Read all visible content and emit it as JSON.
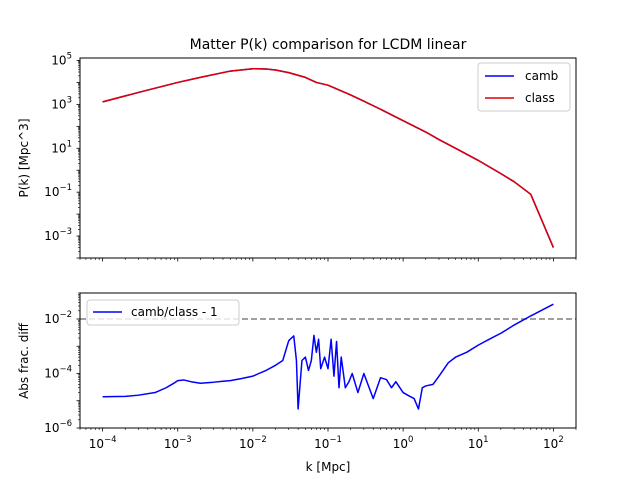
{
  "chart_data": [
    {
      "type": "line",
      "title": "Matter P(k) comparison for LCDM linear",
      "xlabel": "",
      "ylabel": "P(k) [Mpc^3]",
      "xscale": "log",
      "yscale": "log",
      "xlim": [
        5e-05,
        200
      ],
      "ylim": [
        0.0001,
        130000.0
      ],
      "yticks": [
        {
          "base": "10",
          "exp": "5",
          "value": 100000
        },
        {
          "base": "10",
          "exp": "3",
          "value": 1000
        },
        {
          "base": "10",
          "exp": "1",
          "value": 10
        },
        {
          "base": "10",
          "exp": "−1",
          "value": 0.1
        },
        {
          "base": "10",
          "exp": "−3",
          "value": 0.001
        }
      ],
      "legend": {
        "position": "top-right"
      },
      "series": [
        {
          "name": "camb",
          "color": "#0000ff",
          "x": [
            0.0001,
            0.0003,
            0.001,
            0.002,
            0.005,
            0.01,
            0.015,
            0.02,
            0.03,
            0.05,
            0.07,
            0.1,
            0.2,
            0.3,
            0.5,
            1,
            2,
            3,
            5,
            10,
            20,
            30,
            50,
            100
          ],
          "y": [
            1300,
            3500,
            10000,
            17000,
            33000,
            42000,
            41000,
            37000,
            28000,
            17000,
            10000,
            7500,
            2700,
            1400,
            600,
            180,
            55,
            25,
            10,
            2.8,
            0.7,
            0.3,
            0.08,
            0.0003
          ]
        },
        {
          "name": "class",
          "color": "#e00000",
          "x": [
            0.0001,
            0.0003,
            0.001,
            0.002,
            0.005,
            0.01,
            0.015,
            0.02,
            0.03,
            0.05,
            0.07,
            0.1,
            0.2,
            0.3,
            0.5,
            1,
            2,
            3,
            5,
            10,
            20,
            30,
            50,
            100
          ],
          "y": [
            1300,
            3500,
            10000,
            17000,
            33000,
            42000,
            41000,
            37000,
            28000,
            17000,
            10000,
            7500,
            2700,
            1400,
            600,
            180,
            55,
            25,
            10,
            2.8,
            0.7,
            0.3,
            0.08,
            0.0003
          ]
        }
      ]
    },
    {
      "type": "line",
      "title": "",
      "xlabel": "k [Mpc]",
      "ylabel": "Abs frac. diff",
      "xscale": "log",
      "yscale": "log",
      "xlim": [
        5e-05,
        200
      ],
      "ylim": [
        1e-06,
        0.09
      ],
      "xticks": [
        {
          "base": "10",
          "exp": "−4",
          "value": 0.0001
        },
        {
          "base": "10",
          "exp": "−3",
          "value": 0.001
        },
        {
          "base": "10",
          "exp": "−2",
          "value": 0.01
        },
        {
          "base": "10",
          "exp": "−1",
          "value": 0.1
        },
        {
          "base": "10",
          "exp": "0",
          "value": 1
        },
        {
          "base": "10",
          "exp": "1",
          "value": 10
        },
        {
          "base": "10",
          "exp": "2",
          "value": 100
        }
      ],
      "yticks": [
        {
          "base": "10",
          "exp": "−2",
          "value": 0.01
        },
        {
          "base": "10",
          "exp": "−4",
          "value": 0.0001
        },
        {
          "base": "10",
          "exp": "−6",
          "value": 1e-06
        }
      ],
      "reference_line": {
        "y": 0.01,
        "style": "dashed",
        "color": "#808080"
      },
      "legend": {
        "position": "top-left"
      },
      "series": [
        {
          "name": "camb/class - 1",
          "color": "#0000ff",
          "x": [
            0.0001,
            0.0002,
            0.0003,
            0.0005,
            0.0007,
            0.0009,
            0.001,
            0.0012,
            0.0015,
            0.002,
            0.003,
            0.004,
            0.005,
            0.007,
            0.01,
            0.012,
            0.015,
            0.02,
            0.025,
            0.03,
            0.035,
            0.038,
            0.04,
            0.045,
            0.05,
            0.055,
            0.06,
            0.065,
            0.07,
            0.075,
            0.08,
            0.09,
            0.1,
            0.11,
            0.12,
            0.13,
            0.14,
            0.15,
            0.17,
            0.19,
            0.21,
            0.25,
            0.3,
            0.4,
            0.5,
            0.6,
            0.7,
            0.8,
            1.0,
            1.2,
            1.4,
            1.6,
            1.8,
            2.0,
            2.5,
            3.0,
            4.0,
            5.0,
            7.0,
            10,
            15,
            20,
            30,
            50,
            100
          ],
          "y": [
            1.4e-05,
            1.45e-05,
            1.6e-05,
            2e-05,
            3e-05,
            4.5e-05,
            5.5e-05,
            5.8e-05,
            5e-05,
            4.4e-05,
            4.8e-05,
            5.2e-05,
            5.5e-05,
            6.5e-05,
            8e-05,
            0.0001,
            0.00013,
            0.0002,
            0.0003,
            0.0016,
            0.0024,
            0.0003,
            5e-06,
            0.0003,
            0.0004,
            0.00013,
            0.0003,
            0.0025,
            0.0006,
            0.0018,
            0.00015,
            0.0004,
            0.00015,
            0.0018,
            8e-05,
            0.0015,
            3e-05,
            0.0004,
            3e-05,
            5e-05,
            0.0001,
            2e-05,
            0.0001,
            1.2e-05,
            7e-05,
            6e-05,
            3e-05,
            5e-05,
            2e-05,
            1.5e-05,
            1.2e-05,
            5e-06,
            3e-05,
            3.5e-05,
            4e-05,
            8e-05,
            0.00025,
            0.0004,
            0.0006,
            0.0011,
            0.002,
            0.003,
            0.006,
            0.013,
            0.035
          ]
        }
      ]
    }
  ]
}
